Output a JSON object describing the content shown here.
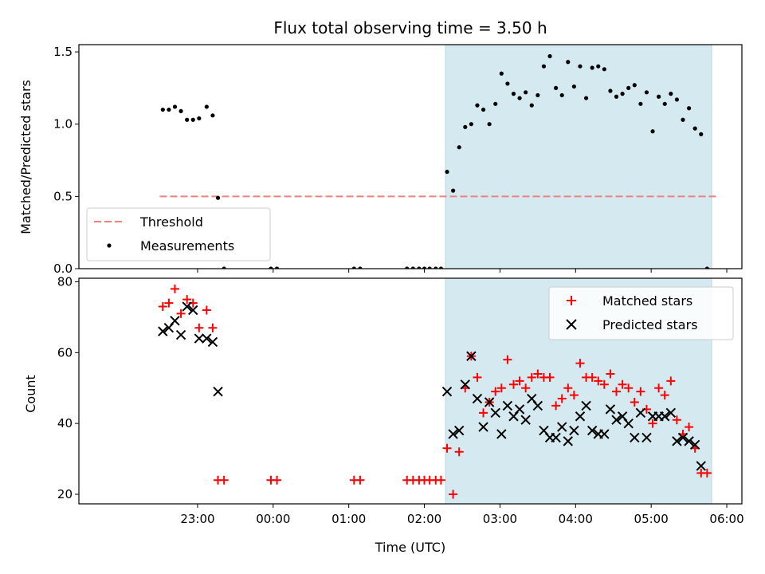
{
  "chart_data": {
    "type": "scatter",
    "title": "Flux total observing time = 3.50 h",
    "xlabel": "Time (UTC)",
    "x_ticks": [
      "23:00",
      "00:00",
      "01:00",
      "02:00",
      "03:00",
      "04:00",
      "05:00",
      "06:00"
    ],
    "x_tick_hours": [
      23,
      24,
      25,
      26,
      27,
      28,
      29,
      30
    ],
    "xlim": [
      21.43,
      30.2
    ],
    "observing_window": [
      26.28,
      29.8
    ],
    "colors": {
      "window": "#d4eaf0",
      "threshold": "#f08080",
      "measurements": "#000000",
      "matched": "#ff0000",
      "predicted": "#000000"
    },
    "panels": [
      {
        "ylabel": "Matched/Predicted stars",
        "ylim": [
          0,
          1.55
        ],
        "y_ticks": [
          0.0,
          0.5,
          1.0,
          1.5
        ],
        "y_tick_labels": [
          "0.0",
          "0.5",
          "1.0",
          "1.5"
        ],
        "legend": [
          "Threshold",
          "Measurements"
        ],
        "legend_position": "lower-left",
        "threshold": {
          "name": "Threshold",
          "value": 0.5,
          "x_range": [
            22.5,
            29.9
          ]
        },
        "series": [
          {
            "name": "Measurements",
            "style": "dot",
            "points": [
              [
                22.54,
                1.1
              ],
              [
                22.62,
                1.1
              ],
              [
                22.7,
                1.12
              ],
              [
                22.78,
                1.09
              ],
              [
                22.86,
                1.03
              ],
              [
                22.94,
                1.03
              ],
              [
                23.02,
                1.04
              ],
              [
                23.12,
                1.12
              ],
              [
                23.2,
                1.06
              ],
              [
                23.27,
                0.49
              ],
              [
                23.35,
                0
              ],
              [
                23.97,
                0
              ],
              [
                24.05,
                0
              ],
              [
                25.07,
                0
              ],
              [
                25.15,
                0
              ],
              [
                25.77,
                0
              ],
              [
                25.85,
                0
              ],
              [
                25.93,
                0
              ],
              [
                26.0,
                0
              ],
              [
                26.07,
                0
              ],
              [
                26.15,
                0
              ],
              [
                26.22,
                0
              ],
              [
                26.3,
                0.67
              ],
              [
                26.38,
                0.54
              ],
              [
                26.46,
                0.84
              ],
              [
                26.54,
                0.98
              ],
              [
                26.62,
                1.0
              ],
              [
                26.7,
                1.13
              ],
              [
                26.78,
                1.1
              ],
              [
                26.86,
                1.0
              ],
              [
                26.94,
                1.14
              ],
              [
                27.02,
                1.35
              ],
              [
                27.1,
                1.28
              ],
              [
                27.18,
                1.21
              ],
              [
                27.26,
                1.18
              ],
              [
                27.34,
                1.22
              ],
              [
                27.42,
                1.13
              ],
              [
                27.5,
                1.2
              ],
              [
                27.58,
                1.4
              ],
              [
                27.66,
                1.47
              ],
              [
                27.74,
                1.25
              ],
              [
                27.82,
                1.2
              ],
              [
                27.9,
                1.43
              ],
              [
                27.98,
                1.26
              ],
              [
                28.06,
                1.4
              ],
              [
                28.14,
                1.18
              ],
              [
                28.22,
                1.39
              ],
              [
                28.3,
                1.4
              ],
              [
                28.38,
                1.38
              ],
              [
                28.46,
                1.23
              ],
              [
                28.54,
                1.19
              ],
              [
                28.62,
                1.21
              ],
              [
                28.7,
                1.25
              ],
              [
                28.78,
                1.27
              ],
              [
                28.86,
                1.14
              ],
              [
                28.94,
                1.22
              ],
              [
                29.02,
                0.95
              ],
              [
                29.1,
                1.19
              ],
              [
                29.18,
                1.14
              ],
              [
                29.26,
                1.21
              ],
              [
                29.34,
                1.17
              ],
              [
                29.42,
                1.03
              ],
              [
                29.5,
                1.11
              ],
              [
                29.58,
                0.97
              ],
              [
                29.66,
                0.93
              ],
              [
                29.74,
                0
              ]
            ]
          }
        ]
      },
      {
        "ylabel": "Count",
        "ylim": [
          17.3,
          81.0
        ],
        "y_ticks": [
          20,
          40,
          60,
          80
        ],
        "y_tick_labels": [
          "20",
          "40",
          "60",
          "80"
        ],
        "legend": [
          "Matched stars",
          "Predicted stars"
        ],
        "legend_position": "upper-right",
        "series": [
          {
            "name": "Matched stars",
            "style": "plus",
            "points": [
              [
                22.54,
                73
              ],
              [
                22.62,
                74
              ],
              [
                22.7,
                78
              ],
              [
                22.78,
                71
              ],
              [
                22.86,
                75
              ],
              [
                22.94,
                74
              ],
              [
                23.02,
                67
              ],
              [
                23.12,
                72
              ],
              [
                23.2,
                67
              ],
              [
                23.27,
                24
              ],
              [
                23.35,
                24
              ],
              [
                23.97,
                24
              ],
              [
                24.05,
                24
              ],
              [
                25.07,
                24
              ],
              [
                25.15,
                24
              ],
              [
                25.77,
                24
              ],
              [
                25.85,
                24
              ],
              [
                25.93,
                24
              ],
              [
                26.0,
                24
              ],
              [
                26.07,
                24
              ],
              [
                26.15,
                24
              ],
              [
                26.22,
                24
              ],
              [
                26.3,
                33
              ],
              [
                26.38,
                20
              ],
              [
                26.46,
                32
              ],
              [
                26.54,
                50
              ],
              [
                26.62,
                59
              ],
              [
                26.7,
                53
              ],
              [
                26.78,
                43
              ],
              [
                26.86,
                46
              ],
              [
                26.94,
                49
              ],
              [
                27.02,
                50
              ],
              [
                27.1,
                58
              ],
              [
                27.18,
                51
              ],
              [
                27.26,
                52
              ],
              [
                27.34,
                50
              ],
              [
                27.42,
                53
              ],
              [
                27.5,
                54
              ],
              [
                27.58,
                53
              ],
              [
                27.66,
                53
              ],
              [
                27.74,
                45
              ],
              [
                27.82,
                47
              ],
              [
                27.9,
                50
              ],
              [
                27.98,
                48
              ],
              [
                28.06,
                57
              ],
              [
                28.14,
                53
              ],
              [
                28.22,
                53
              ],
              [
                28.3,
                52
              ],
              [
                28.38,
                51
              ],
              [
                28.46,
                54
              ],
              [
                28.54,
                49
              ],
              [
                28.62,
                51
              ],
              [
                28.7,
                50
              ],
              [
                28.78,
                46
              ],
              [
                28.86,
                49
              ],
              [
                28.94,
                44
              ],
              [
                29.02,
                40
              ],
              [
                29.1,
                50
              ],
              [
                29.18,
                48
              ],
              [
                29.26,
                52
              ],
              [
                29.34,
                41
              ],
              [
                29.42,
                37
              ],
              [
                29.5,
                39
              ],
              [
                29.58,
                33
              ],
              [
                29.66,
                26
              ],
              [
                29.74,
                26
              ]
            ]
          },
          {
            "name": "Predicted stars",
            "style": "x",
            "points": [
              [
                22.54,
                66
              ],
              [
                22.62,
                67
              ],
              [
                22.7,
                69
              ],
              [
                22.78,
                65
              ],
              [
                22.86,
                73
              ],
              [
                22.94,
                72
              ],
              [
                23.02,
                64
              ],
              [
                23.12,
                64
              ],
              [
                23.2,
                63
              ],
              [
                23.27,
                49
              ],
              [
                26.3,
                49
              ],
              [
                26.38,
                37
              ],
              [
                26.46,
                38
              ],
              [
                26.54,
                51
              ],
              [
                26.62,
                59
              ],
              [
                26.7,
                47
              ],
              [
                26.78,
                39
              ],
              [
                26.86,
                46
              ],
              [
                26.94,
                43
              ],
              [
                27.02,
                37
              ],
              [
                27.1,
                45
              ],
              [
                27.18,
                42
              ],
              [
                27.26,
                44
              ],
              [
                27.34,
                41
              ],
              [
                27.42,
                47
              ],
              [
                27.5,
                45
              ],
              [
                27.58,
                38
              ],
              [
                27.66,
                36
              ],
              [
                27.74,
                36
              ],
              [
                27.82,
                39
              ],
              [
                27.9,
                35
              ],
              [
                27.98,
                38
              ],
              [
                28.06,
                42
              ],
              [
                28.14,
                45
              ],
              [
                28.22,
                38
              ],
              [
                28.3,
                37
              ],
              [
                28.38,
                37
              ],
              [
                28.46,
                44
              ],
              [
                28.54,
                41
              ],
              [
                28.62,
                42
              ],
              [
                28.7,
                40
              ],
              [
                28.78,
                36
              ],
              [
                28.86,
                43
              ],
              [
                28.94,
                36
              ],
              [
                29.02,
                42
              ],
              [
                29.1,
                42
              ],
              [
                29.18,
                42
              ],
              [
                29.26,
                43
              ],
              [
                29.34,
                35
              ],
              [
                29.42,
                36
              ],
              [
                29.5,
                35
              ],
              [
                29.58,
                34
              ],
              [
                29.66,
                28
              ]
            ]
          }
        ]
      }
    ]
  }
}
